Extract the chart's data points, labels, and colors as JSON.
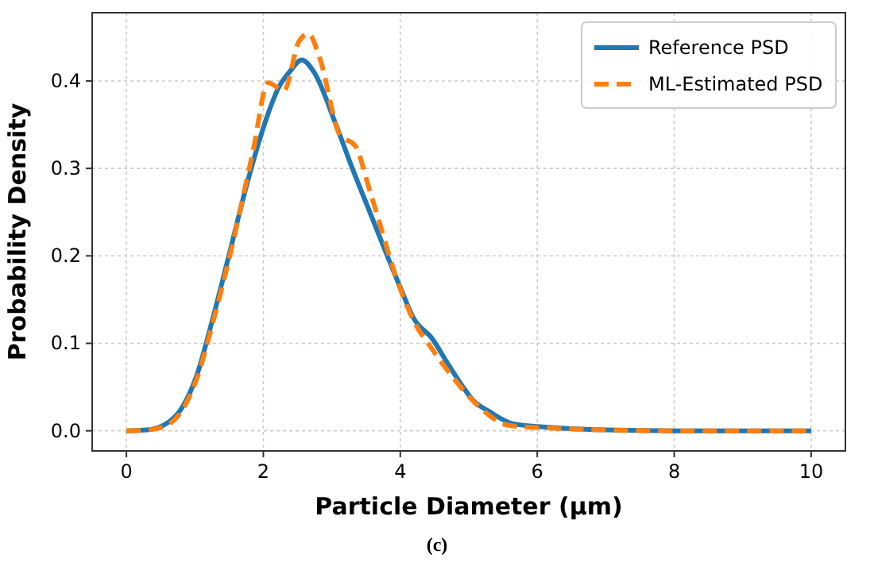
{
  "chart_data": {
    "type": "line",
    "xlabel": "Particle Diameter (µm)",
    "ylabel": "Probability Density",
    "xlim": [
      -0.5,
      10.5
    ],
    "ylim": [
      -0.023,
      0.478
    ],
    "xticks": [
      0,
      2,
      4,
      6,
      8,
      10
    ],
    "yticks": [
      {
        "value": 0,
        "label": "0.0"
      },
      0.1,
      0.2,
      0.3,
      0.4
    ],
    "grid": true,
    "legend": "top right",
    "annotations": [
      "(c)"
    ],
    "series": [
      {
        "name": "Reference PSD",
        "color": "#1f77b4",
        "line_style": "solid",
        "x": [
          0,
          0.3,
          0.58,
          0.8,
          1.03,
          1.25,
          1.48,
          1.77,
          2.04,
          2.22,
          2.4,
          2.56,
          2.74,
          3.06,
          3.3,
          3.56,
          4.01,
          4.2,
          4.46,
          4.7,
          4.9,
          5.06,
          5.3,
          5.65,
          6.17,
          7,
          8,
          9,
          10
        ],
        "values": [
          0,
          0.001,
          0.008,
          0.025,
          0.064,
          0.125,
          0.195,
          0.285,
          0.356,
          0.392,
          0.412,
          0.424,
          0.41,
          0.35,
          0.3,
          0.249,
          0.162,
          0.128,
          0.106,
          0.076,
          0.052,
          0.035,
          0.022,
          0.008,
          0.004,
          0.001,
          0,
          0,
          0
        ]
      },
      {
        "name": "ML-Estimated PSD",
        "color": "#ff7f0e",
        "line_style": "dashed",
        "x": [
          0,
          0.3,
          0.58,
          0.8,
          1.03,
          1.25,
          1.48,
          1.85,
          2.07,
          2.3,
          2.52,
          2.66,
          2.82,
          3.12,
          3.34,
          3.56,
          4.01,
          4.2,
          4.46,
          4.8,
          5.13,
          5.6,
          6.2,
          7,
          8,
          9,
          10
        ],
        "values": [
          0,
          0.001,
          0.006,
          0.022,
          0.06,
          0.12,
          0.19,
          0.32,
          0.398,
          0.389,
          0.445,
          0.454,
          0.427,
          0.338,
          0.326,
          0.273,
          0.16,
          0.125,
          0.094,
          0.058,
          0.029,
          0.006,
          0.003,
          0.001,
          0,
          0,
          0
        ]
      }
    ]
  }
}
